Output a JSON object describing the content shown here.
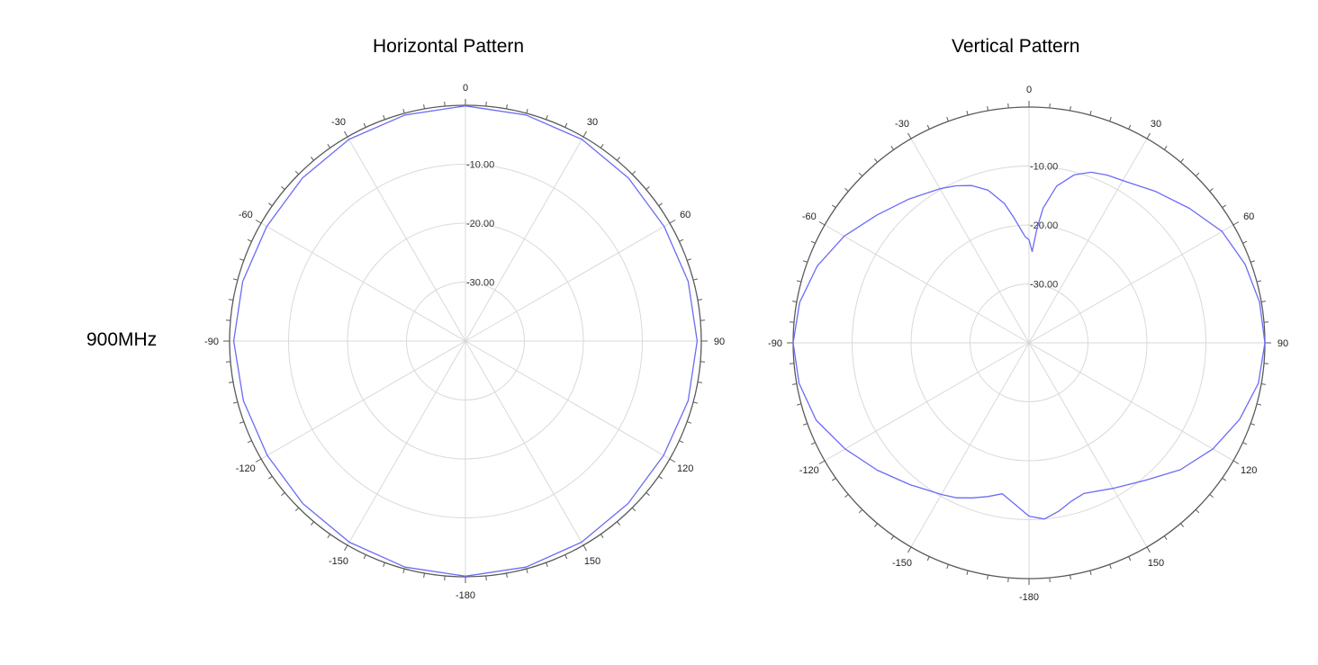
{
  "row_label": "900MHz",
  "colors": {
    "trace": "#6b6bf5",
    "outer_circle": "#5a5a5a",
    "grid": "#d9d9d9"
  },
  "chart_data": [
    {
      "type": "polar-line",
      "title": "Horizontal Pattern",
      "r_unit": "dB",
      "rlim": [
        -40,
        0
      ],
      "radial_ticks": [
        -10,
        -20,
        -30
      ],
      "radial_tick_labels": [
        "-10.00",
        "-20.00",
        "-30.00"
      ],
      "angle_zero": "top",
      "angle_direction": "clockwise",
      "angle_labels": [
        {
          "angle": 0,
          "text": "0"
        },
        {
          "angle": 30,
          "text": "30"
        },
        {
          "angle": 60,
          "text": "60"
        },
        {
          "angle": 90,
          "text": "90"
        },
        {
          "angle": 120,
          "text": "120"
        },
        {
          "angle": 150,
          "text": "150"
        },
        {
          "angle": 180,
          "text": "-180"
        },
        {
          "angle": -150,
          "text": "-150"
        },
        {
          "angle": -120,
          "text": "-120"
        },
        {
          "angle": -90,
          "text": "-90"
        },
        {
          "angle": -60,
          "text": "-60"
        },
        {
          "angle": -30,
          "text": "-30"
        }
      ],
      "grid": true,
      "series": [
        {
          "angles": [
            0,
            15,
            30,
            45,
            60,
            75,
            90,
            105,
            120,
            135,
            150,
            165,
            180,
            195,
            210,
            225,
            240,
            255,
            270,
            285,
            300,
            315,
            330,
            345,
            360
          ],
          "values": [
            -0.1,
            -0.3,
            -0.5,
            -0.9,
            -1.1,
            -0.9,
            -0.7,
            -0.9,
            -1.2,
            -1.0,
            -0.6,
            -0.3,
            -0.1,
            -0.3,
            -0.6,
            -1.0,
            -1.2,
            -1.0,
            -0.7,
            -0.9,
            -1.1,
            -0.9,
            -0.5,
            -0.3,
            -0.1
          ]
        }
      ]
    },
    {
      "type": "polar-line",
      "title": "Vertical Pattern",
      "r_unit": "dB",
      "rlim": [
        -40,
        0
      ],
      "radial_ticks": [
        -10,
        -20,
        -30
      ],
      "radial_tick_labels": [
        "-10.00",
        "-20.00",
        "-30.00"
      ],
      "angle_zero": "top",
      "angle_direction": "clockwise",
      "angle_labels": [
        {
          "angle": 0,
          "text": "0"
        },
        {
          "angle": 30,
          "text": "30"
        },
        {
          "angle": 60,
          "text": "60"
        },
        {
          "angle": 90,
          "text": "90"
        },
        {
          "angle": 120,
          "text": "120"
        },
        {
          "angle": 150,
          "text": "150"
        },
        {
          "angle": 180,
          "text": "-180"
        },
        {
          "angle": -150,
          "text": "-150"
        },
        {
          "angle": -120,
          "text": "-120"
        },
        {
          "angle": -90,
          "text": "-90"
        },
        {
          "angle": -60,
          "text": "-60"
        },
        {
          "angle": -30,
          "text": "-30"
        }
      ],
      "grid": true,
      "series": [
        {
          "angles": [
            0,
            2,
            4,
            6,
            10,
            15,
            20,
            25,
            30,
            40,
            50,
            60,
            70,
            80,
            90,
            100,
            110,
            120,
            130,
            140,
            150,
            160,
            165,
            170,
            175,
            180,
            185,
            190,
            195,
            200,
            205,
            210,
            220,
            230,
            240,
            250,
            260,
            270,
            280,
            290,
            300,
            310,
            320,
            330,
            335,
            340,
            345,
            350,
            353,
            356,
            358,
            360
          ],
          "values": [
            -22.5,
            -24.5,
            -20.5,
            -17.0,
            -13.0,
            -10.5,
            -9.2,
            -8.6,
            -8.2,
            -6.5,
            -4.5,
            -2.2,
            -1.0,
            -0.3,
            0.0,
            -0.5,
            -2.0,
            -4.0,
            -6.5,
            -9.5,
            -11.5,
            -12.8,
            -12.2,
            -11.0,
            -10.0,
            -10.6,
            -12.5,
            -14.0,
            -13.0,
            -12.0,
            -11.0,
            -10.3,
            -8.6,
            -6.4,
            -4.0,
            -1.6,
            -0.4,
            0.0,
            -0.5,
            -1.8,
            -3.8,
            -6.3,
            -8.2,
            -9.8,
            -10.6,
            -11.6,
            -13.2,
            -16.0,
            -18.5,
            -20.8,
            -22.0,
            -22.5
          ]
        }
      ]
    }
  ]
}
